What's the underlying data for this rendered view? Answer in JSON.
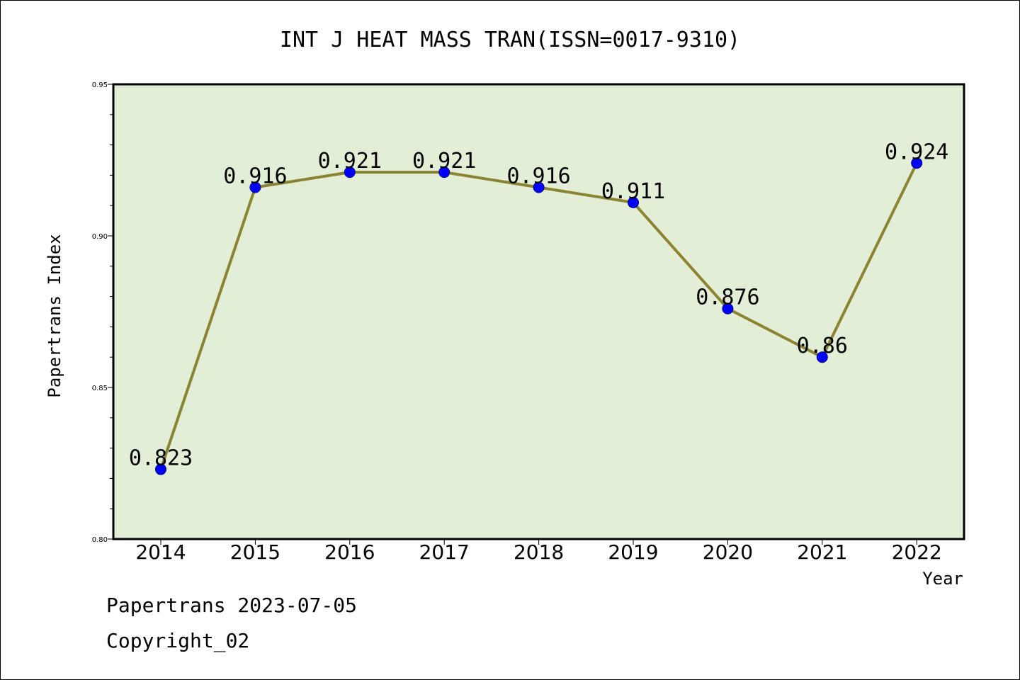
{
  "chart_data": {
    "type": "line",
    "title": "INT J HEAT MASS TRAN(ISSN=0017-9310)",
    "xlabel": "Year",
    "ylabel": "Papertrans Index",
    "categories": [
      "2014",
      "2015",
      "2016",
      "2017",
      "2018",
      "2019",
      "2020",
      "2021",
      "2022"
    ],
    "values": [
      0.823,
      0.916,
      0.921,
      0.921,
      0.916,
      0.911,
      0.876,
      0.86,
      0.924
    ],
    "data_labels": [
      "0.823",
      "0.916",
      "0.921",
      "0.921",
      "0.916",
      "0.911",
      "0.876",
      "0.86",
      "0.924"
    ],
    "ylim": [
      0.8,
      0.95
    ],
    "yticks": [
      "0.80",
      "0.85",
      "0.90",
      "0.95"
    ],
    "grid": false,
    "legend": "none",
    "colors": {
      "plot_background": "#e2efd6",
      "line": "#8b8332",
      "marker": "#0000ff"
    }
  },
  "footer": {
    "line1": "Papertrans 2023-07-05",
    "line2": "Copyright_02"
  }
}
